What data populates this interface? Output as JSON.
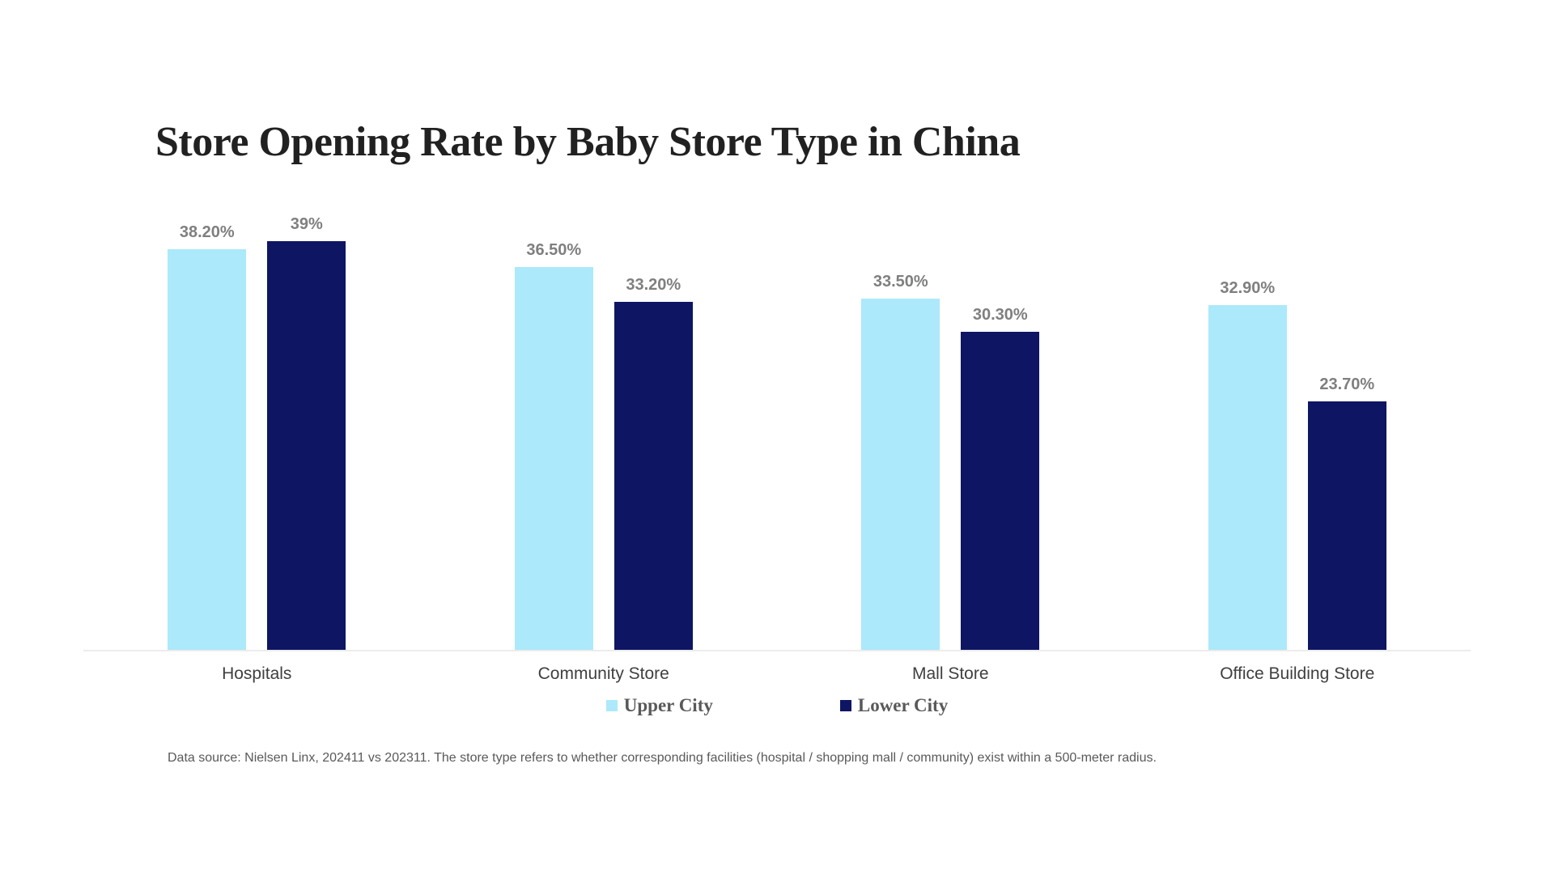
{
  "chart_data": {
    "type": "bar",
    "title": "Store Opening Rate by Baby Store Type in China",
    "categories": [
      "Hospitals",
      "Community Store",
      "Mall Store",
      "Office Building Store"
    ],
    "series": [
      {
        "name": "Upper City",
        "color": "#ace9fa",
        "values": [
          38.2,
          36.5,
          33.5,
          32.9
        ],
        "labels": [
          "38.20%",
          "36.50%",
          "33.50%",
          "32.90%"
        ]
      },
      {
        "name": "Lower City",
        "color": "#0e1563",
        "values": [
          39,
          33.2,
          30.3,
          23.7
        ],
        "labels": [
          "39%",
          "33.20%",
          "30.30%",
          "23.70%"
        ]
      }
    ],
    "xlabel": "",
    "ylabel": "",
    "ylim": [
      0,
      45
    ],
    "grid": false,
    "axis_line_color": "#ececec",
    "value_label_color": "#7f7f7f",
    "legend_position": "bottom",
    "footnote": "Data source: Nielsen Linx, 202411 vs 202311. The store type refers to whether corresponding facilities (hospital / shopping mall / community) exist within a 500-meter radius."
  }
}
